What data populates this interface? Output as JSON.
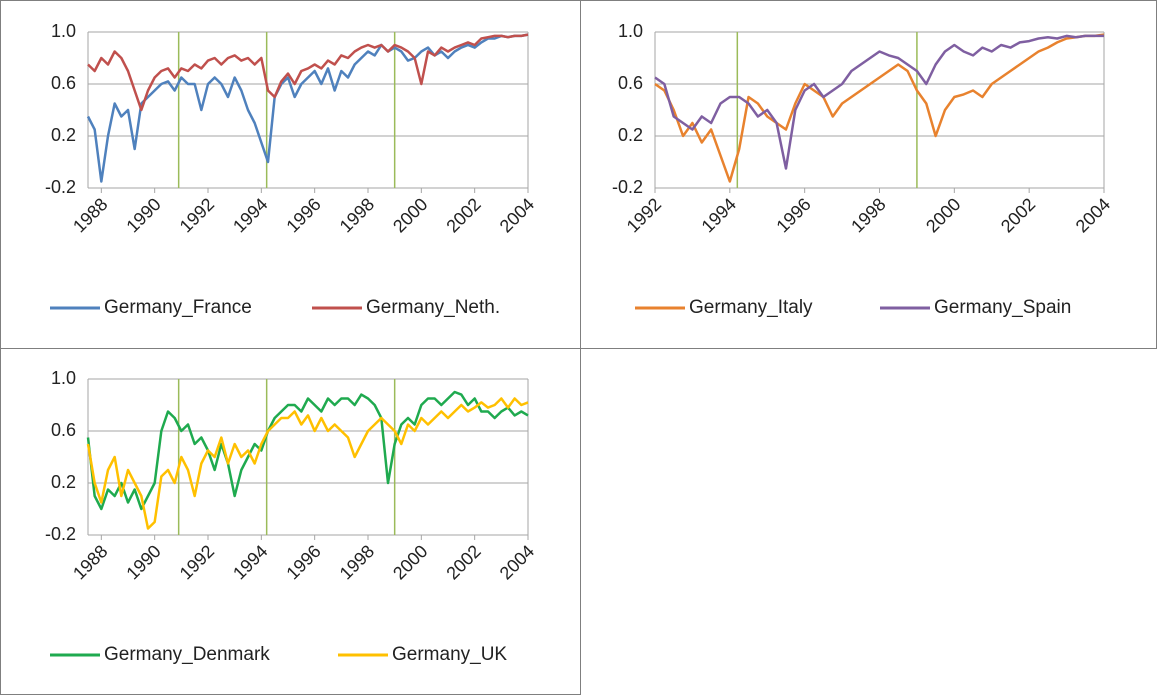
{
  "chart_data": [
    {
      "type": "line",
      "x": [
        1987.5,
        1987.75,
        1988,
        1988.25,
        1988.5,
        1988.75,
        1989,
        1989.25,
        1989.5,
        1989.75,
        1990,
        1990.25,
        1990.5,
        1990.75,
        1991,
        1991.25,
        1991.5,
        1991.75,
        1992,
        1992.25,
        1992.5,
        1992.75,
        1993,
        1993.25,
        1993.5,
        1993.75,
        1994,
        1994.25,
        1994.5,
        1994.75,
        1995,
        1995.25,
        1995.5,
        1995.75,
        1996,
        1996.25,
        1996.5,
        1996.75,
        1997,
        1997.25,
        1997.5,
        1997.75,
        1998,
        1998.25,
        1998.5,
        1998.75,
        1999,
        1999.25,
        1999.5,
        1999.75,
        2000,
        2000.25,
        2000.5,
        2000.75,
        2001,
        2001.25,
        2001.5,
        2001.75,
        2002,
        2002.25,
        2002.5,
        2002.75,
        2003,
        2003.25,
        2003.5,
        2003.75,
        2004
      ],
      "xlim": [
        1987.5,
        2004
      ],
      "xticks": [
        1988,
        1990,
        1992,
        1994,
        1996,
        1998,
        2000,
        2002,
        2004
      ],
      "ylim": [
        -0.2,
        1
      ],
      "yticks": [
        -0.2,
        0.2,
        0.6,
        {
          "value": 1,
          "label": "1.0"
        }
      ],
      "grid": true,
      "vlines": [
        1990.9,
        1994.2,
        1999.0
      ],
      "vline_color": "#9bbb59",
      "series": [
        {
          "name": "Germany_France",
          "color": "#4f81bd",
          "values": [
            0.35,
            0.25,
            -0.15,
            0.2,
            0.45,
            0.35,
            0.4,
            0.1,
            0.45,
            0.5,
            0.55,
            0.6,
            0.62,
            0.55,
            0.65,
            0.6,
            0.6,
            0.4,
            0.6,
            0.65,
            0.6,
            0.5,
            0.65,
            0.55,
            0.4,
            0.3,
            0.15,
            0.0,
            0.5,
            0.6,
            0.65,
            0.5,
            0.6,
            0.65,
            0.7,
            0.6,
            0.72,
            0.55,
            0.7,
            0.65,
            0.75,
            0.8,
            0.85,
            0.82,
            0.9,
            0.85,
            0.88,
            0.85,
            0.78,
            0.8,
            0.85,
            0.88,
            0.82,
            0.85,
            0.8,
            0.85,
            0.88,
            0.9,
            0.88,
            0.92,
            0.95,
            0.95,
            0.97,
            0.96,
            0.97,
            0.97,
            0.98
          ]
        },
        {
          "name": "Germany_Neth.",
          "color": "#c0504d",
          "values": [
            0.75,
            0.7,
            0.8,
            0.75,
            0.85,
            0.8,
            0.7,
            0.55,
            0.4,
            0.55,
            0.65,
            0.7,
            0.72,
            0.65,
            0.72,
            0.7,
            0.75,
            0.72,
            0.78,
            0.8,
            0.75,
            0.8,
            0.82,
            0.78,
            0.8,
            0.75,
            0.8,
            0.55,
            0.5,
            0.62,
            0.68,
            0.6,
            0.7,
            0.72,
            0.75,
            0.72,
            0.78,
            0.75,
            0.82,
            0.8,
            0.85,
            0.88,
            0.9,
            0.88,
            0.9,
            0.85,
            0.9,
            0.88,
            0.85,
            0.8,
            0.6,
            0.85,
            0.82,
            0.88,
            0.85,
            0.88,
            0.9,
            0.92,
            0.9,
            0.95,
            0.96,
            0.97,
            0.97,
            0.96,
            0.97,
            0.97,
            0.98
          ]
        }
      ]
    },
    {
      "type": "line",
      "x": [
        1992,
        1992.25,
        1992.5,
        1992.75,
        1993,
        1993.25,
        1993.5,
        1993.75,
        1994,
        1994.25,
        1994.5,
        1994.75,
        1995,
        1995.25,
        1995.5,
        1995.75,
        1996,
        1996.25,
        1996.5,
        1996.75,
        1997,
        1997.25,
        1997.5,
        1997.75,
        1998,
        1998.25,
        1998.5,
        1998.75,
        1999,
        1999.25,
        1999.5,
        1999.75,
        2000,
        2000.25,
        2000.5,
        2000.75,
        2001,
        2001.25,
        2001.5,
        2001.75,
        2002,
        2002.25,
        2002.5,
        2002.75,
        2003,
        2003.25,
        2003.5,
        2003.75,
        2004
      ],
      "xlim": [
        1992,
        2004
      ],
      "xticks": [
        1992,
        1994,
        1996,
        1998,
        2000,
        2002,
        2004
      ],
      "ylim": [
        -0.2,
        1
      ],
      "yticks": [
        -0.2,
        0.2,
        0.6,
        {
          "value": 1,
          "label": "1.0"
        }
      ],
      "grid": true,
      "vlines": [
        1994.2,
        1999.0
      ],
      "vline_color": "#9bbb59",
      "series": [
        {
          "name": "Germany_Italy",
          "color": "#e8822e",
          "values": [
            0.6,
            0.55,
            0.4,
            0.2,
            0.3,
            0.15,
            0.25,
            0.05,
            -0.15,
            0.1,
            0.5,
            0.45,
            0.35,
            0.3,
            0.25,
            0.45,
            0.6,
            0.55,
            0.5,
            0.35,
            0.45,
            0.5,
            0.55,
            0.6,
            0.65,
            0.7,
            0.75,
            0.7,
            0.55,
            0.45,
            0.2,
            0.4,
            0.5,
            0.52,
            0.55,
            0.5,
            0.6,
            0.65,
            0.7,
            0.75,
            0.8,
            0.85,
            0.88,
            0.92,
            0.95,
            0.96,
            0.97,
            0.97,
            0.98
          ]
        },
        {
          "name": "Germany_Spain",
          "color": "#7f5fa1",
          "values": [
            0.65,
            0.6,
            0.35,
            0.3,
            0.25,
            0.35,
            0.3,
            0.45,
            0.5,
            0.5,
            0.45,
            0.35,
            0.4,
            0.3,
            -0.05,
            0.4,
            0.55,
            0.6,
            0.5,
            0.55,
            0.6,
            0.7,
            0.75,
            0.8,
            0.85,
            0.82,
            0.8,
            0.75,
            0.7,
            0.6,
            0.75,
            0.85,
            0.9,
            0.85,
            0.82,
            0.88,
            0.85,
            0.9,
            0.88,
            0.92,
            0.93,
            0.95,
            0.96,
            0.95,
            0.97,
            0.96,
            0.97,
            0.97,
            0.97
          ]
        }
      ]
    },
    {
      "type": "line",
      "x": [
        1987.5,
        1987.75,
        1988,
        1988.25,
        1988.5,
        1988.75,
        1989,
        1989.25,
        1989.5,
        1989.75,
        1990,
        1990.25,
        1990.5,
        1990.75,
        1991,
        1991.25,
        1991.5,
        1991.75,
        1992,
        1992.25,
        1992.5,
        1992.75,
        1993,
        1993.25,
        1993.5,
        1993.75,
        1994,
        1994.25,
        1994.5,
        1994.75,
        1995,
        1995.25,
        1995.5,
        1995.75,
        1996,
        1996.25,
        1996.5,
        1996.75,
        1997,
        1997.25,
        1997.5,
        1997.75,
        1998,
        1998.25,
        1998.5,
        1998.75,
        1999,
        1999.25,
        1999.5,
        1999.75,
        2000,
        2000.25,
        2000.5,
        2000.75,
        2001,
        2001.25,
        2001.5,
        2001.75,
        2002,
        2002.25,
        2002.5,
        2002.75,
        2003,
        2003.25,
        2003.5,
        2003.75,
        2004
      ],
      "xlim": [
        1987.5,
        2004
      ],
      "xticks": [
        1988,
        1990,
        1992,
        1994,
        1996,
        1998,
        2000,
        2002,
        2004
      ],
      "ylim": [
        -0.2,
        1
      ],
      "yticks": [
        -0.2,
        0.2,
        0.6,
        {
          "value": 1,
          "label": "1.0"
        }
      ],
      "grid": true,
      "vlines": [
        1990.9,
        1994.2,
        1999.0
      ],
      "vline_color": "#9bbb59",
      "series": [
        {
          "name": "Germany_Denmark",
          "color": "#1faa4f",
          "values": [
            0.55,
            0.1,
            0.0,
            0.15,
            0.1,
            0.2,
            0.05,
            0.15,
            0.0,
            0.1,
            0.2,
            0.6,
            0.75,
            0.7,
            0.6,
            0.65,
            0.5,
            0.55,
            0.45,
            0.3,
            0.5,
            0.35,
            0.1,
            0.3,
            0.4,
            0.5,
            0.45,
            0.6,
            0.7,
            0.75,
            0.8,
            0.8,
            0.75,
            0.85,
            0.8,
            0.75,
            0.85,
            0.8,
            0.85,
            0.85,
            0.8,
            0.88,
            0.85,
            0.8,
            0.7,
            0.2,
            0.5,
            0.65,
            0.7,
            0.65,
            0.8,
            0.85,
            0.85,
            0.8,
            0.85,
            0.9,
            0.88,
            0.8,
            0.85,
            0.75,
            0.75,
            0.7,
            0.75,
            0.78,
            0.72,
            0.75,
            0.72
          ]
        },
        {
          "name": "Germany_UK",
          "color": "#ffc000",
          "values": [
            0.5,
            0.2,
            0.05,
            0.3,
            0.4,
            0.1,
            0.3,
            0.2,
            0.1,
            -0.15,
            -0.1,
            0.25,
            0.3,
            0.2,
            0.4,
            0.3,
            0.1,
            0.35,
            0.45,
            0.4,
            0.55,
            0.35,
            0.5,
            0.4,
            0.45,
            0.35,
            0.5,
            0.6,
            0.65,
            0.7,
            0.7,
            0.75,
            0.65,
            0.72,
            0.6,
            0.7,
            0.6,
            0.65,
            0.6,
            0.55,
            0.4,
            0.5,
            0.6,
            0.65,
            0.7,
            0.65,
            0.6,
            0.5,
            0.65,
            0.6,
            0.7,
            0.65,
            0.7,
            0.75,
            0.7,
            0.75,
            0.8,
            0.75,
            0.78,
            0.82,
            0.78,
            0.8,
            0.85,
            0.78,
            0.85,
            0.8,
            0.82
          ]
        }
      ]
    }
  ]
}
